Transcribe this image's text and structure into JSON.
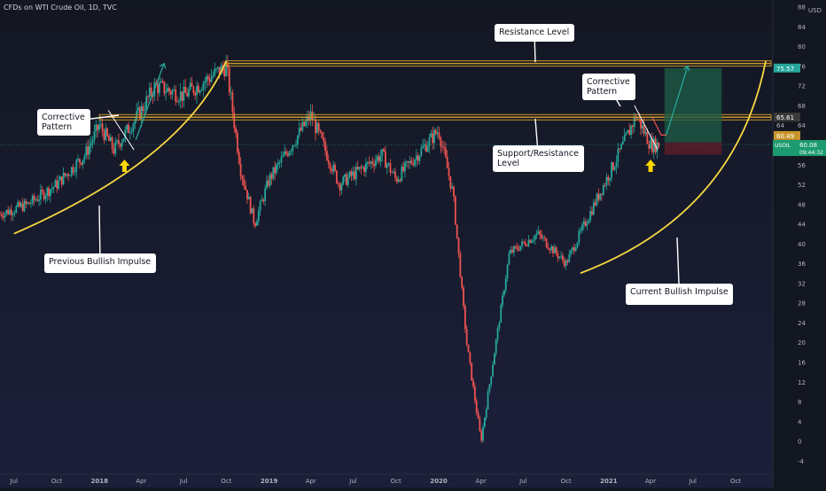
{
  "header": {
    "title": "CFDs on WTI Crude Oil, 1D, TVC"
  },
  "y_axis": {
    "unit": "USD",
    "ticks": [
      "88",
      "84",
      "80",
      "76",
      "72",
      "68",
      "64",
      "60",
      "56",
      "52",
      "48",
      "44",
      "40",
      "36",
      "32",
      "28",
      "24",
      "20",
      "16",
      "12",
      "8",
      "4",
      "0",
      "-4"
    ]
  },
  "x_axis": {
    "ticks": [
      "Jul",
      "Oct",
      "2018",
      "Apr",
      "Jul",
      "Oct",
      "2019",
      "Apr",
      "Jul",
      "Oct",
      "2020",
      "Apr",
      "Jul",
      "Oct",
      "2021",
      "Apr",
      "Jul",
      "Oct"
    ]
  },
  "price_labels": {
    "target": "75.57",
    "resistance": "65.61",
    "entry": "60.49",
    "symbol": "USOIL",
    "last": "60.08",
    "countdown": "09:44:32",
    "extra": "64"
  },
  "annotations": {
    "resistance_level": "Resistance Level",
    "support_resistance": "Support/Resistance Level",
    "corrective_pattern_left": "Corrective Pattern",
    "corrective_pattern_right": "Corrective Pattern",
    "previous_impulse": "Previous Bullish Impulse",
    "current_impulse": "Current Bullish Impulse"
  },
  "colors": {
    "background": "#131722",
    "up": "#26a69a",
    "down": "#ef5350",
    "level": "#c8962c",
    "curve": "#f5d742",
    "arrow_up": "#26a69a",
    "target_zone": "#1e5e46",
    "stop_zone": "#5e1e2a",
    "pointer": "#ffd600"
  },
  "chart_data": {
    "type": "candlestick",
    "title": "CFDs on WTI Crude Oil, 1D, TVC",
    "ylabel": "USD",
    "ylim": [
      -6,
      89
    ],
    "x_range": [
      "2017-06",
      "2021-12"
    ],
    "levels": [
      {
        "name": "Resistance Level",
        "value": 76.5
      },
      {
        "name": "Support/Resistance Level",
        "value": 65.6
      }
    ],
    "price_path": [
      {
        "date": "2017-06",
        "close": 46
      },
      {
        "date": "2017-08",
        "close": 48
      },
      {
        "date": "2017-10",
        "close": 52
      },
      {
        "date": "2017-12",
        "close": 58
      },
      {
        "date": "2018-01",
        "close": 64
      },
      {
        "date": "2018-02",
        "close": 59
      },
      {
        "date": "2018-04",
        "close": 67
      },
      {
        "date": "2018-05",
        "close": 72
      },
      {
        "date": "2018-07",
        "close": 70
      },
      {
        "date": "2018-10",
        "close": 76
      },
      {
        "date": "2018-11",
        "close": 55
      },
      {
        "date": "2018-12",
        "close": 44
      },
      {
        "date": "2019-01",
        "close": 53
      },
      {
        "date": "2019-04",
        "close": 66
      },
      {
        "date": "2019-06",
        "close": 52
      },
      {
        "date": "2019-09",
        "close": 58
      },
      {
        "date": "2019-10",
        "close": 53
      },
      {
        "date": "2020-01",
        "close": 63
      },
      {
        "date": "2020-02",
        "close": 50
      },
      {
        "date": "2020-03",
        "close": 20
      },
      {
        "date": "2020-04",
        "close": 0
      },
      {
        "date": "2020-06",
        "close": 38
      },
      {
        "date": "2020-08",
        "close": 42
      },
      {
        "date": "2020-10",
        "close": 36
      },
      {
        "date": "2020-12",
        "close": 48
      },
      {
        "date": "2021-02",
        "close": 60
      },
      {
        "date": "2021-03",
        "close": 66
      },
      {
        "date": "2021-04",
        "close": 60
      }
    ],
    "projection": {
      "entry": 60.49,
      "target": 75.57,
      "stop": 58.0
    }
  }
}
